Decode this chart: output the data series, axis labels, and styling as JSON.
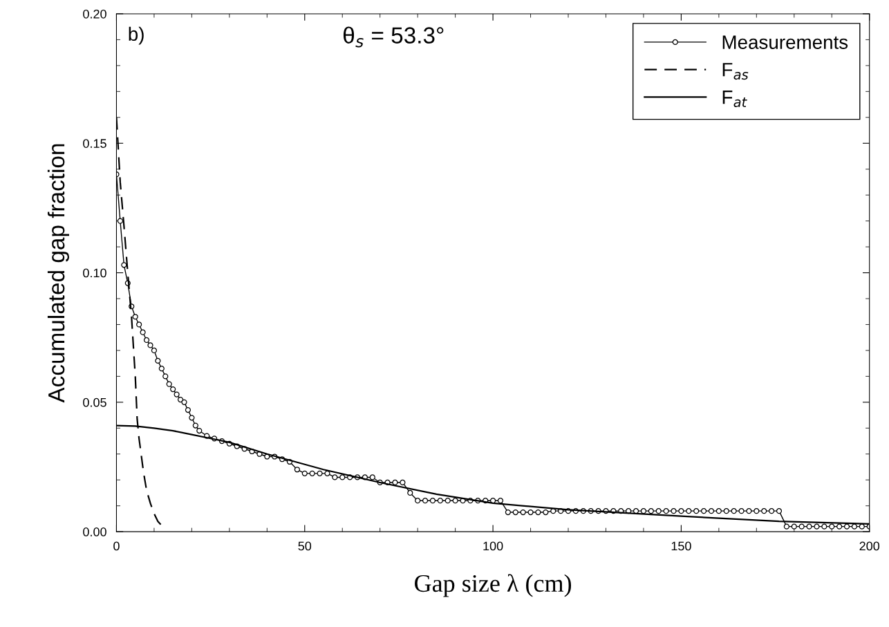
{
  "chart_data": {
    "type": "line",
    "xlabel": "Gap size λ (cm)",
    "ylabel": "Accumulated gap fraction",
    "annotations": [
      "b)",
      "θ$_{s}$ = 53.3°"
    ],
    "xlim": [
      0,
      200
    ],
    "xticks": [
      0,
      50,
      100,
      150,
      200
    ],
    "ylim": [
      0,
      0.2
    ],
    "yticks": [
      {
        "value": 0,
        "label": "0.00"
      },
      {
        "value": 0.05,
        "label": "0.05"
      },
      {
        "value": 0.1,
        "label": "0.10"
      },
      {
        "value": 0.15,
        "label": "0.15"
      },
      {
        "value": 0.2,
        "label": "0.20"
      }
    ],
    "legend": "top right",
    "grid": false,
    "series": [
      {
        "name": "Measurements",
        "color": "#000000",
        "marker": "circle",
        "line_style": "solid",
        "x": [
          0,
          1,
          2,
          3,
          4,
          5,
          6,
          7,
          8,
          9,
          10,
          11,
          12,
          13,
          14,
          15,
          16,
          17,
          18,
          19,
          20,
          21,
          22,
          24,
          26,
          28,
          30,
          32,
          34,
          36,
          38,
          40,
          42,
          44,
          46,
          48,
          50,
          52,
          54,
          56,
          58,
          60,
          62,
          64,
          66,
          68,
          70,
          72,
          74,
          76,
          78,
          80,
          82,
          84,
          86,
          88,
          90,
          92,
          94,
          96,
          98,
          100,
          102,
          104,
          106,
          108,
          110,
          112,
          114,
          116,
          118,
          120,
          122,
          124,
          126,
          128,
          130,
          132,
          134,
          136,
          138,
          140,
          142,
          144,
          146,
          148,
          150,
          152,
          154,
          156,
          158,
          160,
          162,
          164,
          166,
          168,
          170,
          172,
          174,
          176,
          178,
          180,
          182,
          184,
          186,
          188,
          190,
          192,
          194,
          196,
          198,
          200
        ],
        "values": [
          0.138,
          0.12,
          0.103,
          0.096,
          0.087,
          0.083,
          0.08,
          0.077,
          0.074,
          0.072,
          0.07,
          0.066,
          0.063,
          0.06,
          0.057,
          0.055,
          0.053,
          0.051,
          0.05,
          0.047,
          0.044,
          0.041,
          0.039,
          0.037,
          0.036,
          0.035,
          0.034,
          0.033,
          0.032,
          0.031,
          0.03,
          0.029,
          0.029,
          0.028,
          0.027,
          0.024,
          0.0225,
          0.0225,
          0.0225,
          0.0225,
          0.021,
          0.021,
          0.021,
          0.021,
          0.021,
          0.021,
          0.019,
          0.019,
          0.019,
          0.019,
          0.015,
          0.012,
          0.012,
          0.012,
          0.012,
          0.012,
          0.012,
          0.012,
          0.012,
          0.012,
          0.012,
          0.012,
          0.012,
          0.0075,
          0.0075,
          0.0075,
          0.0075,
          0.0075,
          0.0075,
          0.008,
          0.008,
          0.008,
          0.008,
          0.008,
          0.008,
          0.008,
          0.008,
          0.008,
          0.008,
          0.008,
          0.008,
          0.008,
          0.008,
          0.008,
          0.008,
          0.008,
          0.008,
          0.008,
          0.008,
          0.008,
          0.008,
          0.008,
          0.008,
          0.008,
          0.008,
          0.008,
          0.008,
          0.008,
          0.008,
          0.008,
          0.002,
          0.002,
          0.002,
          0.002,
          0.002,
          0.002,
          0.002,
          0.002,
          0.002,
          0.002,
          0.002,
          0.002
        ]
      },
      {
        "name": "F$_{as}$",
        "color": "#000000",
        "marker": "none",
        "line_style": "dashed",
        "x": [
          0,
          1,
          2,
          3,
          4,
          5,
          5.5,
          6,
          7,
          7.3,
          8,
          9,
          10,
          11,
          12
        ],
        "values": [
          0.16,
          0.135,
          0.118,
          0.1,
          0.083,
          0.06,
          0.0435,
          0.036,
          0.025,
          0.022,
          0.016,
          0.011,
          0.007,
          0.004,
          0.0024
        ]
      },
      {
        "name": "F$_{at}$",
        "color": "#000000",
        "marker": "none",
        "line_style": "solid",
        "x": [
          0,
          5,
          10,
          15,
          20,
          25,
          30,
          40,
          55,
          70,
          85,
          100,
          120,
          150,
          176,
          200
        ],
        "values": [
          0.041,
          0.0408,
          0.04,
          0.039,
          0.0375,
          0.036,
          0.0345,
          0.03,
          0.024,
          0.019,
          0.0145,
          0.011,
          0.0085,
          0.006,
          0.004,
          0.003
        ]
      }
    ]
  }
}
